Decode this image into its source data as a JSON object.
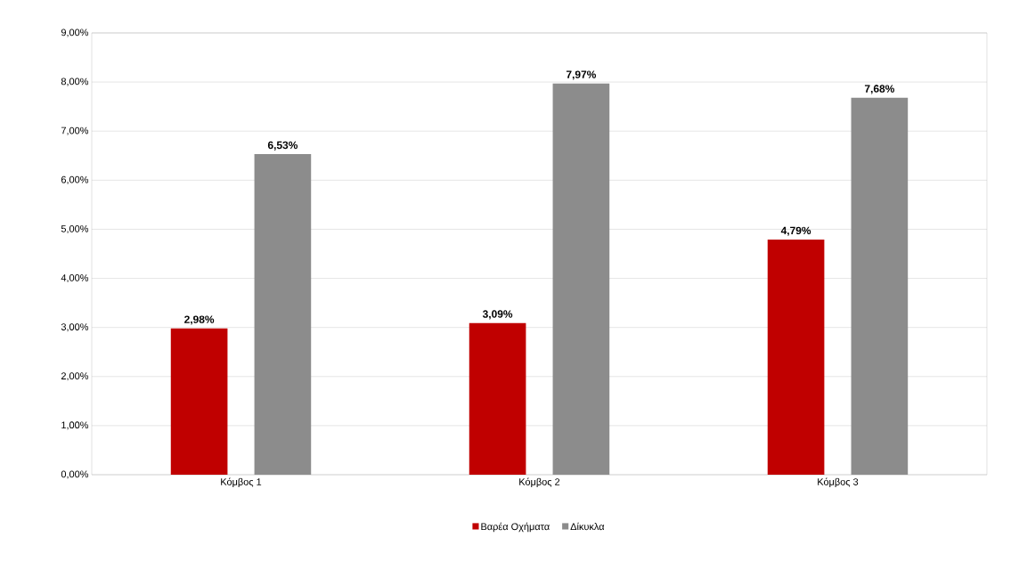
{
  "chart_data": {
    "type": "bar",
    "categories": [
      "Κόμβος 1",
      "Κόμβος 2",
      "Κόμβος 3"
    ],
    "series": [
      {
        "name": "Βαρέα Οχήματα",
        "color": "#c00000",
        "values": [
          2.98,
          3.09,
          4.79
        ],
        "value_labels": [
          "2,98%",
          "3,09%",
          "4,79%"
        ]
      },
      {
        "name": "Δίκυκλα",
        "color": "#8c8c8c",
        "values": [
          6.53,
          7.97,
          7.68
        ],
        "value_labels": [
          "6,53%",
          "7,97%",
          "7,68%"
        ]
      }
    ],
    "ylim": [
      0,
      9
    ],
    "yticks": [
      {
        "value": 0,
        "label": "0,00%"
      },
      {
        "value": 1,
        "label": "1,00%"
      },
      {
        "value": 2,
        "label": "2,00%"
      },
      {
        "value": 3,
        "label": "3,00%"
      },
      {
        "value": 4,
        "label": "4,00%"
      },
      {
        "value": 5,
        "label": "5,00%"
      },
      {
        "value": 6,
        "label": "6,00%"
      },
      {
        "value": 7,
        "label": "7,00%"
      },
      {
        "value": 8,
        "label": "8,00%"
      },
      {
        "value": 9,
        "label": "9,00%"
      }
    ],
    "grid": "y",
    "legend": "bottom"
  }
}
